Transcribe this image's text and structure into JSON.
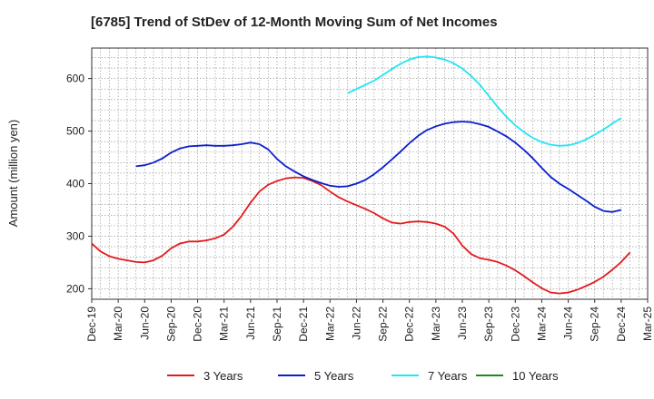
{
  "chart_data": {
    "type": "line",
    "title": "[6785]  Trend of StDev of 12-Month Moving Sum of Net Incomes",
    "ylabel": "Amount (million yen)",
    "xlabel": "",
    "ylim": [
      180,
      658
    ],
    "yticks": [
      200,
      300,
      400,
      500,
      600
    ],
    "xlim": [
      "2019-12",
      "2025-03"
    ],
    "xticks": [
      "Dec-19",
      "Mar-20",
      "Jun-20",
      "Sep-20",
      "Dec-20",
      "Mar-21",
      "Jun-21",
      "Sep-21",
      "Dec-21",
      "Mar-22",
      "Jun-22",
      "Sep-22",
      "Dec-22",
      "Mar-23",
      "Jun-23",
      "Sep-23",
      "Dec-23",
      "Mar-24",
      "Jun-24",
      "Sep-24",
      "Dec-24",
      "Mar-25"
    ],
    "grid": true,
    "legend_position": "bottom",
    "series": [
      {
        "name": "3 Years",
        "color": "#e31a1c",
        "points": [
          [
            "2019-12",
            286
          ],
          [
            "2020-01",
            271
          ],
          [
            "2020-02",
            262
          ],
          [
            "2020-03",
            257
          ],
          [
            "2020-04",
            254
          ],
          [
            "2020-05",
            251
          ],
          [
            "2020-06",
            250
          ],
          [
            "2020-07",
            254
          ],
          [
            "2020-08",
            263
          ],
          [
            "2020-09",
            277
          ],
          [
            "2020-10",
            286
          ],
          [
            "2020-11",
            290
          ],
          [
            "2020-12",
            290
          ],
          [
            "2021-01",
            292
          ],
          [
            "2021-02",
            296
          ],
          [
            "2021-03",
            303
          ],
          [
            "2021-04",
            318
          ],
          [
            "2021-05",
            339
          ],
          [
            "2021-06",
            364
          ],
          [
            "2021-07",
            385
          ],
          [
            "2021-08",
            398
          ],
          [
            "2021-09",
            405
          ],
          [
            "2021-10",
            410
          ],
          [
            "2021-11",
            412
          ],
          [
            "2021-12",
            411
          ],
          [
            "2022-01",
            405
          ],
          [
            "2022-02",
            397
          ],
          [
            "2022-03",
            385
          ],
          [
            "2022-04",
            374
          ],
          [
            "2022-05",
            366
          ],
          [
            "2022-06",
            359
          ],
          [
            "2022-07",
            352
          ],
          [
            "2022-08",
            344
          ],
          [
            "2022-09",
            334
          ],
          [
            "2022-10",
            326
          ],
          [
            "2022-11",
            324
          ],
          [
            "2022-12",
            327
          ],
          [
            "2023-01",
            328
          ],
          [
            "2023-02",
            327
          ],
          [
            "2023-03",
            324
          ],
          [
            "2023-04",
            318
          ],
          [
            "2023-05",
            305
          ],
          [
            "2023-06",
            282
          ],
          [
            "2023-07",
            266
          ],
          [
            "2023-08",
            258
          ],
          [
            "2023-09",
            255
          ],
          [
            "2023-10",
            251
          ],
          [
            "2023-11",
            244
          ],
          [
            "2023-12",
            235
          ],
          [
            "2024-01",
            224
          ],
          [
            "2024-02",
            212
          ],
          [
            "2024-03",
            201
          ],
          [
            "2024-04",
            193
          ],
          [
            "2024-05",
            191
          ],
          [
            "2024-06",
            193
          ],
          [
            "2024-07",
            198
          ],
          [
            "2024-08",
            205
          ],
          [
            "2024-09",
            213
          ],
          [
            "2024-10",
            223
          ],
          [
            "2024-11",
            236
          ],
          [
            "2024-12",
            251
          ],
          [
            "2025-01",
            269
          ]
        ]
      },
      {
        "name": "5 Years",
        "color": "#0a1fcc",
        "points": [
          [
            "2020-05",
            433
          ],
          [
            "2020-06",
            435
          ],
          [
            "2020-07",
            440
          ],
          [
            "2020-08",
            448
          ],
          [
            "2020-09",
            459
          ],
          [
            "2020-10",
            467
          ],
          [
            "2020-11",
            471
          ],
          [
            "2020-12",
            472
          ],
          [
            "2021-01",
            473
          ],
          [
            "2021-02",
            472
          ],
          [
            "2021-03",
            472
          ],
          [
            "2021-04",
            473
          ],
          [
            "2021-05",
            475
          ],
          [
            "2021-06",
            478
          ],
          [
            "2021-07",
            475
          ],
          [
            "2021-08",
            465
          ],
          [
            "2021-09",
            447
          ],
          [
            "2021-10",
            433
          ],
          [
            "2021-11",
            423
          ],
          [
            "2021-12",
            414
          ],
          [
            "2022-01",
            407
          ],
          [
            "2022-02",
            401
          ],
          [
            "2022-03",
            396
          ],
          [
            "2022-04",
            394
          ],
          [
            "2022-05",
            395
          ],
          [
            "2022-06",
            400
          ],
          [
            "2022-07",
            407
          ],
          [
            "2022-08",
            418
          ],
          [
            "2022-09",
            431
          ],
          [
            "2022-10",
            446
          ],
          [
            "2022-11",
            461
          ],
          [
            "2022-12",
            477
          ],
          [
            "2023-01",
            491
          ],
          [
            "2023-02",
            502
          ],
          [
            "2023-03",
            509
          ],
          [
            "2023-04",
            514
          ],
          [
            "2023-05",
            517
          ],
          [
            "2023-06",
            518
          ],
          [
            "2023-07",
            517
          ],
          [
            "2023-08",
            513
          ],
          [
            "2023-09",
            508
          ],
          [
            "2023-10",
            499
          ],
          [
            "2023-11",
            490
          ],
          [
            "2023-12",
            478
          ],
          [
            "2024-01",
            464
          ],
          [
            "2024-02",
            448
          ],
          [
            "2024-03",
            430
          ],
          [
            "2024-04",
            413
          ],
          [
            "2024-05",
            400
          ],
          [
            "2024-06",
            390
          ],
          [
            "2024-07",
            379
          ],
          [
            "2024-08",
            368
          ],
          [
            "2024-09",
            356
          ],
          [
            "2024-10",
            348
          ],
          [
            "2024-11",
            346
          ],
          [
            "2024-12",
            350
          ]
        ]
      },
      {
        "name": "7 Years",
        "color": "#22e6f2",
        "points": [
          [
            "2022-05",
            572
          ],
          [
            "2022-06",
            580
          ],
          [
            "2022-07",
            588
          ],
          [
            "2022-08",
            596
          ],
          [
            "2022-09",
            607
          ],
          [
            "2022-10",
            618
          ],
          [
            "2022-11",
            628
          ],
          [
            "2022-12",
            636
          ],
          [
            "2023-01",
            641
          ],
          [
            "2023-02",
            642
          ],
          [
            "2023-03",
            640
          ],
          [
            "2023-04",
            636
          ],
          [
            "2023-05",
            629
          ],
          [
            "2023-06",
            619
          ],
          [
            "2023-07",
            605
          ],
          [
            "2023-08",
            588
          ],
          [
            "2023-09",
            567
          ],
          [
            "2023-10",
            546
          ],
          [
            "2023-11",
            527
          ],
          [
            "2023-12",
            511
          ],
          [
            "2024-01",
            498
          ],
          [
            "2024-02",
            487
          ],
          [
            "2024-03",
            479
          ],
          [
            "2024-04",
            474
          ],
          [
            "2024-05",
            472
          ],
          [
            "2024-06",
            473
          ],
          [
            "2024-07",
            477
          ],
          [
            "2024-08",
            484
          ],
          [
            "2024-09",
            493
          ],
          [
            "2024-10",
            503
          ],
          [
            "2024-11",
            514
          ],
          [
            "2024-12",
            525
          ]
        ]
      },
      {
        "name": "10 Years",
        "color": "#1a8a1a",
        "points": []
      }
    ]
  }
}
